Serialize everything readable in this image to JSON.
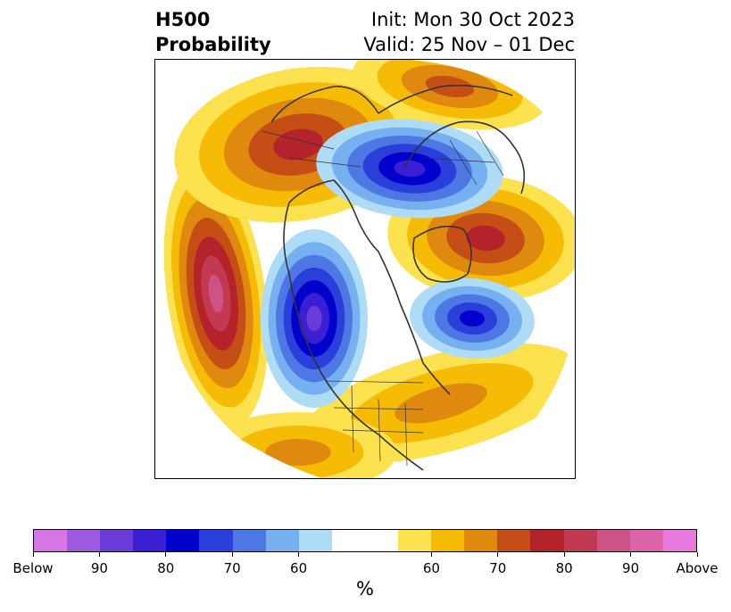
{
  "title": {
    "left_line1": "H500",
    "left_line2": "Probability",
    "right_line1": "Init: Mon 30 Oct 2023",
    "right_line2": "Valid: 25 Nov – 01 Dec"
  },
  "colorbar": {
    "colors": [
      "#d675e6",
      "#9d59e0",
      "#6a3bd9",
      "#3b1fd4",
      "#0000cc",
      "#2a3fd9",
      "#4d78e3",
      "#76b0f0",
      "#aedcf7",
      "#ffffff",
      "#ffffff",
      "#fde24f",
      "#f5bb05",
      "#df8a0e",
      "#c54e17",
      "#b4232a",
      "#c23a52",
      "#cc5384",
      "#dc63a7",
      "#e879df"
    ],
    "tick_labels": [
      "Below",
      "90",
      "80",
      "70",
      "60",
      "60",
      "70",
      "80",
      "90",
      "Above"
    ],
    "unit_label": "%"
  },
  "anomalies": {
    "positive": [
      "#fde24f",
      "#f5bb05",
      "#df8a0e",
      "#c54e17",
      "#b4232a",
      "#c23a52",
      "#cc5384"
    ],
    "negative": [
      "#aedcf7",
      "#76b0f0",
      "#4d78e3",
      "#2a3fd9",
      "#0000cc",
      "#3b1fd4",
      "#6a3bd9"
    ],
    "coast_color": "#333333"
  }
}
